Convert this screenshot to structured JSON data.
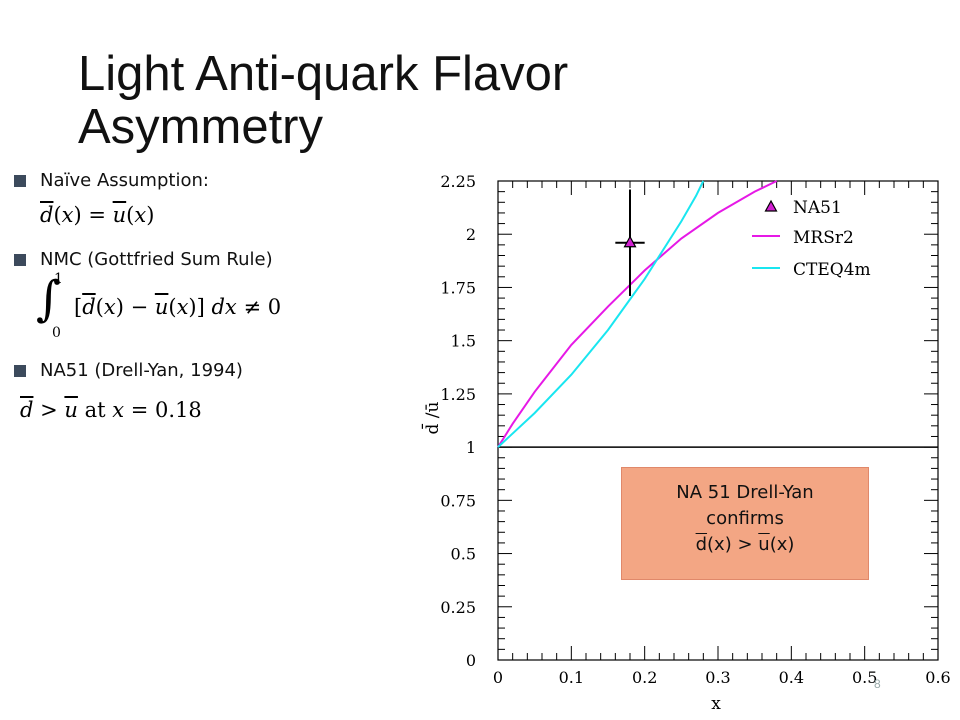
{
  "slide": {
    "title": "Light Anti-quark Flavor Asymmetry",
    "page_number": "8"
  },
  "bullets": [
    {
      "label": "Naïve Assumption:",
      "equation": "d̄(x) = ū(x)"
    },
    {
      "label": "NMC (Gottfried Sum Rule)",
      "equation": "∫₀¹ [d̄(x) − ū(x)] dx ≠ 0"
    },
    {
      "label": "NA51 (Drell-Yan, 1994)",
      "equation": "d̄ > ū at x = 0.18"
    }
  ],
  "callout": {
    "line1": "NA 51 Drell-Yan",
    "line2": "confirms",
    "line3_a": "d",
    "line3_b": "(x) > ",
    "line3_c": "u",
    "line3_d": "(x)"
  },
  "chart_data": {
    "type": "line",
    "xlabel": "x",
    "ylabel": "d̄ /ū",
    "xlim": [
      0,
      0.6
    ],
    "ylim": [
      0,
      2.25
    ],
    "x_ticks": [
      "0",
      "0.1",
      "0.2",
      "0.3",
      "0.4",
      "0.5",
      "0.6"
    ],
    "y_ticks": [
      "0",
      "0.25",
      "0.5",
      "0.75",
      "1",
      "1.25",
      "1.5",
      "1.75",
      "2",
      "2.25"
    ],
    "reference_line_y": 1,
    "legend_position": "top-right",
    "series": [
      {
        "name": "MRSr2",
        "color": "#e619e6",
        "x": [
          0,
          0.02,
          0.05,
          0.1,
          0.15,
          0.2,
          0.25,
          0.3,
          0.35,
          0.38
        ],
        "y": [
          1.0,
          1.11,
          1.26,
          1.48,
          1.66,
          1.83,
          1.98,
          2.1,
          2.2,
          2.25
        ]
      },
      {
        "name": "CTEQ4m",
        "color": "#19e6f0",
        "x": [
          0,
          0.05,
          0.1,
          0.15,
          0.2,
          0.25,
          0.27,
          0.28
        ],
        "y": [
          1.0,
          1.16,
          1.34,
          1.55,
          1.79,
          2.06,
          2.18,
          2.25
        ]
      }
    ],
    "points": [
      {
        "name": "NA51",
        "x": 0.18,
        "y": 1.96,
        "xerr": 0.02,
        "yerr_low": 0.25,
        "yerr_high": 0.25,
        "marker_color": "#d21fd2"
      }
    ]
  }
}
